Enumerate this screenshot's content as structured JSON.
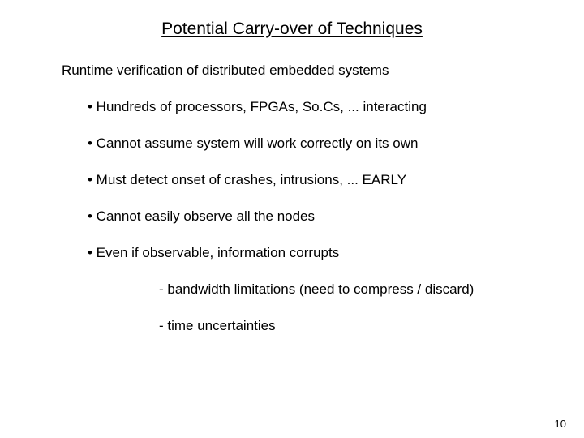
{
  "title": "Potential Carry-over of Techniques",
  "heading": "Runtime verification of distributed embedded systems",
  "bullets": [
    "• Hundreds of processors, FPGAs, So.Cs, ... interacting",
    "• Cannot assume system will work correctly on its own",
    "• Must detect onset of crashes, intrusions, ... EARLY",
    "• Cannot easily observe all the nodes",
    "• Even if observable, information corrupts"
  ],
  "subbullets": [
    "- bandwidth limitations (need to compress / discard)",
    "- time uncertainties"
  ],
  "page_number": "10",
  "style": {
    "background_color": "#ffffff",
    "text_color": "#000000",
    "title_fontsize": 21,
    "body_fontsize": 17,
    "pagenum_fontsize": 13,
    "font_family": "Verdana, Geneva, sans-serif",
    "slide_width": 720,
    "slide_height": 540
  }
}
